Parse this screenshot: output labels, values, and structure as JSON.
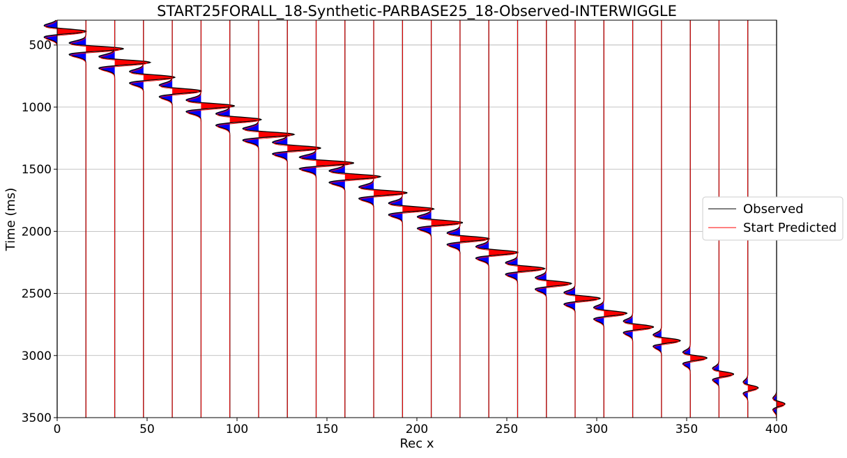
{
  "chart_data": {
    "type": "line",
    "title": "START25FORALL_18-Synthetic-PARBASE25_18-Observed-INTERWIGGLE",
    "xlabel": "Rec x",
    "ylabel": "Time (ms)",
    "xlim": [
      0,
      400
    ],
    "ylim": [
      3500,
      300
    ],
    "y_inverted": true,
    "grid": true,
    "x_ticks": [
      0,
      50,
      100,
      150,
      200,
      250,
      300,
      350,
      400
    ],
    "y_ticks": [
      500,
      1000,
      1500,
      2000,
      2500,
      3000,
      3500
    ],
    "legend_position": "center-right",
    "fill_positive_color": "#ff0000",
    "fill_negative_color": "#0000ff",
    "series": [
      {
        "name": "Observed",
        "color": "#000000"
      },
      {
        "name": "Start Predicted",
        "color": "#ff0000"
      }
    ],
    "trace_offsets": [
      0,
      16,
      32,
      48,
      64,
      80,
      96,
      112,
      128,
      144,
      160,
      176,
      192,
      208,
      224,
      240,
      256,
      272,
      288,
      304,
      320,
      336,
      352,
      368,
      384,
      400
    ],
    "first_break_times": [
      330,
      470,
      580,
      700,
      810,
      930,
      1040,
      1160,
      1270,
      1390,
      1500,
      1630,
      1760,
      1870,
      2000,
      2110,
      2240,
      2360,
      2480,
      2600,
      2710,
      2820,
      2960,
      3090,
      3200,
      3330
    ],
    "wavelet_amplitudes": [
      14,
      18,
      17,
      15,
      14,
      16,
      15,
      17,
      16,
      18,
      17,
      16,
      15,
      15,
      14,
      14,
      13,
      12,
      12,
      11,
      10,
      9,
      8,
      7,
      5,
      4
    ]
  }
}
